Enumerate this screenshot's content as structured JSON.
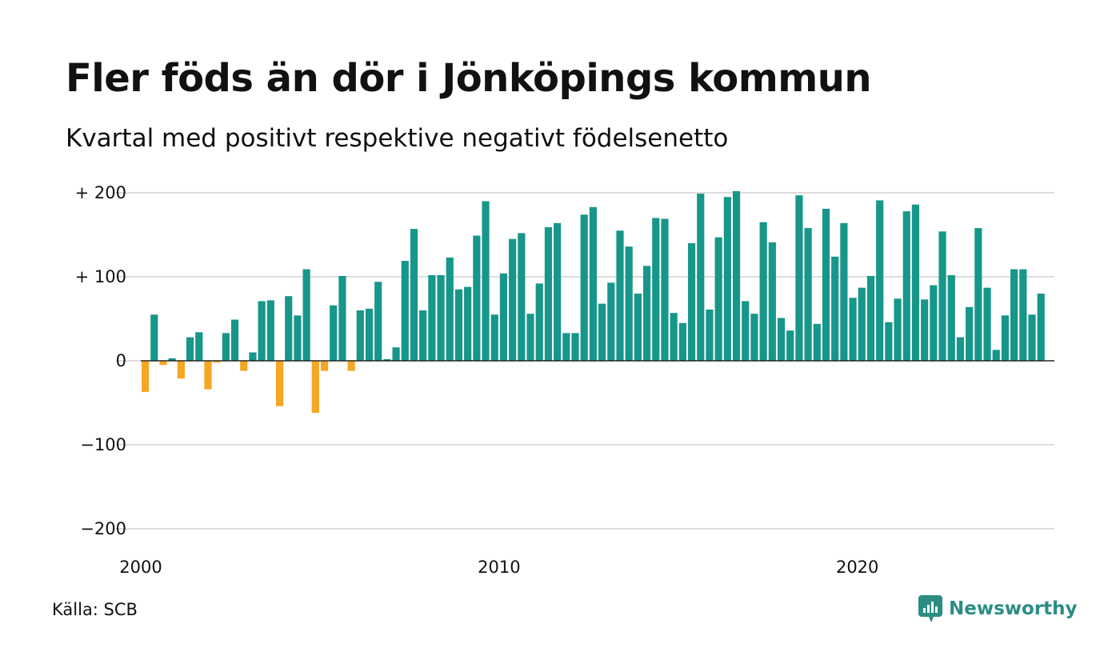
{
  "title": "Fler föds än dör i Jönköpings kommun",
  "subtitle": "Kvartal med positivt respektive negativt födelsenetto",
  "source": "Källa: SCB",
  "brand": "Newsworthy",
  "colors": {
    "positive": "#17968a",
    "negative": "#f5a623",
    "grid": "#dddddd",
    "brand": "#2b8d84"
  },
  "chart_data": {
    "type": "bar",
    "title": "Fler föds än dör i Jönköpings kommun",
    "subtitle": "Kvartal med positivt respektive negativt födelsenetto",
    "xlabel": "",
    "ylabel": "",
    "ylim": [
      -200,
      200
    ],
    "xlim": [
      2000,
      2025.5
    ],
    "grid": true,
    "y_ticks": [
      {
        "value": 200,
        "label": "+ 200"
      },
      {
        "value": 100,
        "label": "+ 100"
      },
      {
        "value": 0,
        "label": "0"
      },
      {
        "value": -100,
        "label": "−100"
      },
      {
        "value": -200,
        "label": "−200"
      }
    ],
    "x_ticks": [
      {
        "value": 2000,
        "label": "2000"
      },
      {
        "value": 2010,
        "label": "2010"
      },
      {
        "value": 2020,
        "label": "2020"
      }
    ],
    "start": "2000 Q1",
    "frequency": "quarterly",
    "values": [
      -37,
      55,
      -5,
      3,
      -21,
      28,
      34,
      -34,
      -2,
      33,
      49,
      -12,
      10,
      71,
      72,
      -54,
      77,
      54,
      109,
      -62,
      -12,
      66,
      101,
      -12,
      60,
      62,
      94,
      2,
      16,
      119,
      157,
      60,
      102,
      102,
      123,
      85,
      88,
      149,
      190,
      55,
      104,
      145,
      152,
      56,
      92,
      159,
      164,
      33,
      33,
      174,
      183,
      68,
      93,
      155,
      136,
      80,
      113,
      170,
      169,
      57,
      45,
      140,
      199,
      61,
      147,
      195,
      202,
      71,
      56,
      165,
      141,
      51,
      36,
      197,
      158,
      44,
      181,
      124,
      164,
      75,
      87,
      101,
      191,
      46,
      74,
      178,
      186,
      73,
      90,
      154,
      102,
      28,
      64,
      158,
      87,
      13,
      54,
      109,
      109,
      55,
      80
    ]
  }
}
